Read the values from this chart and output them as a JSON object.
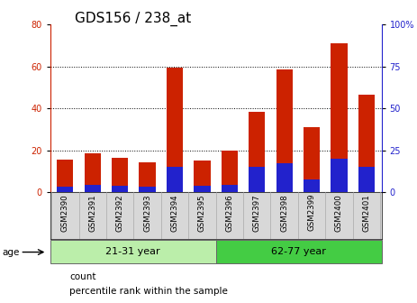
{
  "title": "GDS156 / 238_at",
  "samples": [
    "GSM2390",
    "GSM2391",
    "GSM2392",
    "GSM2393",
    "GSM2394",
    "GSM2395",
    "GSM2396",
    "GSM2397",
    "GSM2398",
    "GSM2399",
    "GSM2400",
    "GSM2401"
  ],
  "count_values": [
    15.5,
    18.5,
    16.5,
    14.5,
    59.5,
    15.0,
    20.0,
    38.5,
    58.5,
    31.0,
    71.0,
    46.5
  ],
  "percentile_values": [
    3.5,
    4.5,
    4.0,
    3.5,
    15.0,
    4.0,
    4.5,
    15.0,
    17.5,
    7.5,
    20.0,
    15.0
  ],
  "left_ylim": [
    0,
    80
  ],
  "right_ylim": [
    0,
    100
  ],
  "left_yticks": [
    0,
    20,
    40,
    60,
    80
  ],
  "right_yticks": [
    0,
    25,
    50,
    75,
    100
  ],
  "right_yticklabels": [
    "0",
    "25",
    "50",
    "75",
    "100%"
  ],
  "bar_color": "#cc2200",
  "percentile_color": "#2222cc",
  "grid_color": "#000000",
  "age_groups": [
    {
      "label": "21-31 year",
      "start": 0,
      "end": 6,
      "color": "#bbeeaa"
    },
    {
      "label": "62-77 year",
      "start": 6,
      "end": 12,
      "color": "#44cc44"
    }
  ],
  "age_label": "age",
  "legend_count": "count",
  "legend_percentile": "percentile rank within the sample",
  "bg_color": "#ffffff",
  "plot_bg": "#ffffff",
  "title_fontsize": 11,
  "tick_fontsize": 7,
  "axis_label_color_left": "#cc2200",
  "axis_label_color_right": "#2222cc",
  "xlabel_bg": "#d8d8d8"
}
